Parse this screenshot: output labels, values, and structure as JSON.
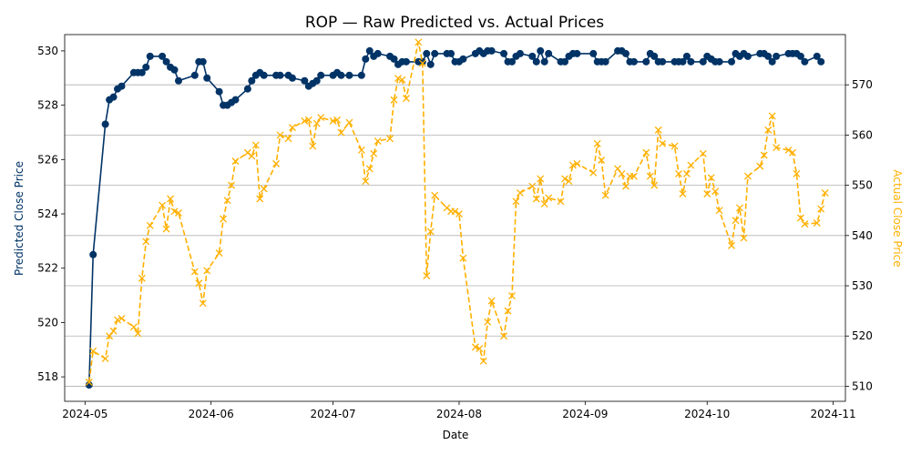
{
  "chart_data": {
    "type": "line",
    "title": "ROP — Raw Predicted vs. Actual Prices",
    "xlabel": "Date",
    "ylabel_left": "Predicted Close Price",
    "ylabel_right": "Actual Close Price",
    "x_range": [
      "2024-04-26",
      "2024-11-04"
    ],
    "ylim_left": [
      517.1,
      530.6
    ],
    "ylim_right": [
      507,
      580
    ],
    "x_ticks": [
      "2024-05",
      "2024-06",
      "2024-07",
      "2024-08",
      "2024-09",
      "2024-10",
      "2024-11"
    ],
    "y_ticks_left": [
      518,
      520,
      522,
      524,
      526,
      528,
      530
    ],
    "y_ticks_right": [
      510,
      520,
      530,
      540,
      550,
      560,
      570
    ],
    "grid": "horizontal lines at right-axis ticks",
    "legend": "none",
    "colors": {
      "predicted": "#003366",
      "actual": "#FFB000"
    },
    "series": [
      {
        "axis": "left",
        "style": "solid line with circle markers",
        "points": [
          [
            "2024-05-02",
            517.7
          ],
          [
            "2024-05-03",
            522.5
          ],
          [
            "2024-05-06",
            527.3
          ],
          [
            "2024-05-07",
            528.2
          ],
          [
            "2024-05-08",
            528.3
          ],
          [
            "2024-05-09",
            528.6
          ],
          [
            "2024-05-10",
            528.7
          ],
          [
            "2024-05-13",
            529.2
          ],
          [
            "2024-05-14",
            529.2
          ],
          [
            "2024-05-15",
            529.2
          ],
          [
            "2024-05-16",
            529.4
          ],
          [
            "2024-05-17",
            529.8
          ],
          [
            "2024-05-20",
            529.8
          ],
          [
            "2024-05-21",
            529.6
          ],
          [
            "2024-05-22",
            529.4
          ],
          [
            "2024-05-23",
            529.3
          ],
          [
            "2024-05-24",
            528.9
          ],
          [
            "2024-05-28",
            529.1
          ],
          [
            "2024-05-29",
            529.6
          ],
          [
            "2024-05-30",
            529.6
          ],
          [
            "2024-05-31",
            529.0
          ],
          [
            "2024-06-03",
            528.5
          ],
          [
            "2024-06-04",
            528.0
          ],
          [
            "2024-06-05",
            528.0
          ],
          [
            "2024-06-06",
            528.1
          ],
          [
            "2024-06-07",
            528.2
          ],
          [
            "2024-06-10",
            528.6
          ],
          [
            "2024-06-11",
            528.9
          ],
          [
            "2024-06-12",
            529.1
          ],
          [
            "2024-06-13",
            529.2
          ],
          [
            "2024-06-14",
            529.1
          ],
          [
            "2024-06-17",
            529.1
          ],
          [
            "2024-06-18",
            529.1
          ],
          [
            "2024-06-20",
            529.1
          ],
          [
            "2024-06-21",
            529.0
          ],
          [
            "2024-06-24",
            528.9
          ],
          [
            "2024-06-25",
            528.7
          ],
          [
            "2024-06-26",
            528.8
          ],
          [
            "2024-06-27",
            528.9
          ],
          [
            "2024-06-28",
            529.1
          ],
          [
            "2024-07-01",
            529.1
          ],
          [
            "2024-07-02",
            529.2
          ],
          [
            "2024-07-03",
            529.1
          ],
          [
            "2024-07-05",
            529.1
          ],
          [
            "2024-07-08",
            529.1
          ],
          [
            "2024-07-09",
            529.7
          ],
          [
            "2024-07-10",
            530.0
          ],
          [
            "2024-07-11",
            529.8
          ],
          [
            "2024-07-12",
            529.9
          ],
          [
            "2024-07-15",
            529.8
          ],
          [
            "2024-07-16",
            529.7
          ],
          [
            "2024-07-17",
            529.5
          ],
          [
            "2024-07-18",
            529.6
          ],
          [
            "2024-07-19",
            529.6
          ],
          [
            "2024-07-22",
            529.6
          ],
          [
            "2024-07-23",
            529.6
          ],
          [
            "2024-07-24",
            529.9
          ],
          [
            "2024-07-25",
            529.5
          ],
          [
            "2024-07-26",
            529.9
          ],
          [
            "2024-07-29",
            529.9
          ],
          [
            "2024-07-30",
            529.9
          ],
          [
            "2024-07-31",
            529.6
          ],
          [
            "2024-08-01",
            529.6
          ],
          [
            "2024-08-02",
            529.7
          ],
          [
            "2024-08-05",
            529.9
          ],
          [
            "2024-08-06",
            530.0
          ],
          [
            "2024-08-07",
            529.9
          ],
          [
            "2024-08-08",
            530.0
          ],
          [
            "2024-08-09",
            530.0
          ],
          [
            "2024-08-12",
            529.9
          ],
          [
            "2024-08-13",
            529.6
          ],
          [
            "2024-08-14",
            529.6
          ],
          [
            "2024-08-15",
            529.8
          ],
          [
            "2024-08-16",
            529.9
          ],
          [
            "2024-08-19",
            529.8
          ],
          [
            "2024-08-20",
            529.6
          ],
          [
            "2024-08-21",
            530.0
          ],
          [
            "2024-08-22",
            529.6
          ],
          [
            "2024-08-23",
            529.9
          ],
          [
            "2024-08-26",
            529.6
          ],
          [
            "2024-08-27",
            529.6
          ],
          [
            "2024-08-28",
            529.8
          ],
          [
            "2024-08-29",
            529.9
          ],
          [
            "2024-08-30",
            529.9
          ],
          [
            "2024-09-03",
            529.9
          ],
          [
            "2024-09-04",
            529.6
          ],
          [
            "2024-09-05",
            529.6
          ],
          [
            "2024-09-06",
            529.6
          ],
          [
            "2024-09-09",
            530.0
          ],
          [
            "2024-09-10",
            530.0
          ],
          [
            "2024-09-11",
            529.9
          ],
          [
            "2024-09-12",
            529.6
          ],
          [
            "2024-09-13",
            529.6
          ],
          [
            "2024-09-16",
            529.6
          ],
          [
            "2024-09-17",
            529.9
          ],
          [
            "2024-09-18",
            529.8
          ],
          [
            "2024-09-19",
            529.6
          ],
          [
            "2024-09-20",
            529.6
          ],
          [
            "2024-09-23",
            529.6
          ],
          [
            "2024-09-24",
            529.6
          ],
          [
            "2024-09-25",
            529.6
          ],
          [
            "2024-09-26",
            529.8
          ],
          [
            "2024-09-27",
            529.6
          ],
          [
            "2024-09-30",
            529.6
          ],
          [
            "2024-10-01",
            529.8
          ],
          [
            "2024-10-02",
            529.7
          ],
          [
            "2024-10-03",
            529.6
          ],
          [
            "2024-10-04",
            529.6
          ],
          [
            "2024-10-07",
            529.6
          ],
          [
            "2024-10-08",
            529.9
          ],
          [
            "2024-10-09",
            529.8
          ],
          [
            "2024-10-10",
            529.9
          ],
          [
            "2024-10-11",
            529.8
          ],
          [
            "2024-10-14",
            529.9
          ],
          [
            "2024-10-15",
            529.9
          ],
          [
            "2024-10-16",
            529.8
          ],
          [
            "2024-10-17",
            529.6
          ],
          [
            "2024-10-18",
            529.8
          ],
          [
            "2024-10-21",
            529.9
          ],
          [
            "2024-10-22",
            529.9
          ],
          [
            "2024-10-23",
            529.9
          ],
          [
            "2024-10-24",
            529.8
          ],
          [
            "2024-10-25",
            529.6
          ],
          [
            "2024-10-28",
            529.8
          ],
          [
            "2024-10-29",
            529.6
          ]
        ]
      },
      {
        "axis": "right",
        "style": "dashed line with x markers",
        "points": [
          [
            "2024-05-02",
            510.8
          ],
          [
            "2024-05-03",
            517.0
          ],
          [
            "2024-05-06",
            515.5
          ],
          [
            "2024-05-07",
            520.0
          ],
          [
            "2024-05-08",
            521.0
          ],
          [
            "2024-05-09",
            523.2
          ],
          [
            "2024-05-10",
            523.5
          ],
          [
            "2024-05-13",
            521.8
          ],
          [
            "2024-05-14",
            520.5
          ],
          [
            "2024-05-15",
            531.5
          ],
          [
            "2024-05-16",
            538.8
          ],
          [
            "2024-05-17",
            542.0
          ],
          [
            "2024-05-20",
            546.0
          ],
          [
            "2024-05-21",
            541.3
          ],
          [
            "2024-05-22",
            547.3
          ],
          [
            "2024-05-23",
            544.8
          ],
          [
            "2024-05-24",
            544.5
          ],
          [
            "2024-05-28",
            532.8
          ],
          [
            "2024-05-29",
            530.5
          ],
          [
            "2024-05-30",
            526.5
          ],
          [
            "2024-05-31",
            533.0
          ],
          [
            "2024-06-03",
            536.5
          ],
          [
            "2024-06-04",
            543.3
          ],
          [
            "2024-06-05",
            547.0
          ],
          [
            "2024-06-06",
            550.0
          ],
          [
            "2024-06-07",
            554.8
          ],
          [
            "2024-06-10",
            556.5
          ],
          [
            "2024-06-11",
            555.8
          ],
          [
            "2024-06-12",
            558.0
          ],
          [
            "2024-06-13",
            547.3
          ],
          [
            "2024-06-14",
            549.3
          ],
          [
            "2024-06-17",
            554.3
          ],
          [
            "2024-06-18",
            560.0
          ],
          [
            "2024-06-20",
            559.3
          ],
          [
            "2024-06-21",
            561.5
          ],
          [
            "2024-06-24",
            562.8
          ],
          [
            "2024-06-25",
            563.0
          ],
          [
            "2024-06-26",
            557.8
          ],
          [
            "2024-06-27",
            562.3
          ],
          [
            "2024-06-28",
            563.5
          ],
          [
            "2024-07-01",
            562.8
          ],
          [
            "2024-07-02",
            563.0
          ],
          [
            "2024-07-03",
            560.5
          ],
          [
            "2024-07-05",
            562.5
          ],
          [
            "2024-07-08",
            557.0
          ],
          [
            "2024-07-09",
            550.8
          ],
          [
            "2024-07-10",
            553.3
          ],
          [
            "2024-07-11",
            556.3
          ],
          [
            "2024-07-12",
            558.8
          ],
          [
            "2024-07-15",
            559.3
          ],
          [
            "2024-07-16",
            567.0
          ],
          [
            "2024-07-17",
            571.3
          ],
          [
            "2024-07-18",
            571.0
          ],
          [
            "2024-07-19",
            567.3
          ],
          [
            "2024-07-22",
            578.5
          ],
          [
            "2024-07-23",
            574.3
          ],
          [
            "2024-07-24",
            532.0
          ],
          [
            "2024-07-25",
            540.8
          ],
          [
            "2024-07-26",
            548.0
          ],
          [
            "2024-07-29",
            545.5
          ],
          [
            "2024-07-30",
            544.8
          ],
          [
            "2024-07-31",
            544.8
          ],
          [
            "2024-08-01",
            544.3
          ],
          [
            "2024-08-02",
            535.5
          ],
          [
            "2024-08-05",
            517.8
          ],
          [
            "2024-08-06",
            517.5
          ],
          [
            "2024-08-07",
            515.0
          ],
          [
            "2024-08-08",
            522.8
          ],
          [
            "2024-08-09",
            527.0
          ],
          [
            "2024-08-12",
            520.0
          ],
          [
            "2024-08-13",
            525.0
          ],
          [
            "2024-08-14",
            528.0
          ],
          [
            "2024-08-15",
            546.8
          ],
          [
            "2024-08-16",
            548.5
          ],
          [
            "2024-08-19",
            549.8
          ],
          [
            "2024-08-20",
            547.3
          ],
          [
            "2024-08-21",
            551.3
          ],
          [
            "2024-08-22",
            546.3
          ],
          [
            "2024-08-23",
            547.5
          ],
          [
            "2024-08-26",
            546.8
          ],
          [
            "2024-08-27",
            551.3
          ],
          [
            "2024-08-28",
            550.8
          ],
          [
            "2024-08-29",
            554.0
          ],
          [
            "2024-08-30",
            554.3
          ],
          [
            "2024-09-03",
            552.5
          ],
          [
            "2024-09-04",
            558.3
          ],
          [
            "2024-09-05",
            555.0
          ],
          [
            "2024-09-06",
            548.0
          ],
          [
            "2024-09-09",
            553.3
          ],
          [
            "2024-09-10",
            552.3
          ],
          [
            "2024-09-11",
            549.8
          ],
          [
            "2024-09-12",
            551.8
          ],
          [
            "2024-09-13",
            551.8
          ],
          [
            "2024-09-16",
            556.5
          ],
          [
            "2024-09-17",
            551.8
          ],
          [
            "2024-09-18",
            550.0
          ],
          [
            "2024-09-19",
            561.0
          ],
          [
            "2024-09-20",
            558.3
          ],
          [
            "2024-09-23",
            557.8
          ],
          [
            "2024-09-24",
            552.3
          ],
          [
            "2024-09-25",
            548.3
          ],
          [
            "2024-09-26",
            552.3
          ],
          [
            "2024-09-27",
            554.0
          ],
          [
            "2024-09-30",
            556.3
          ],
          [
            "2024-10-01",
            548.3
          ],
          [
            "2024-10-02",
            551.5
          ],
          [
            "2024-10-03",
            548.8
          ],
          [
            "2024-10-04",
            545.0
          ],
          [
            "2024-10-07",
            538.0
          ],
          [
            "2024-10-08",
            543.0
          ],
          [
            "2024-10-09",
            545.5
          ],
          [
            "2024-10-10",
            539.5
          ],
          [
            "2024-10-11",
            551.8
          ],
          [
            "2024-10-14",
            553.8
          ],
          [
            "2024-10-15",
            556.0
          ],
          [
            "2024-10-16",
            561.0
          ],
          [
            "2024-10-17",
            563.8
          ],
          [
            "2024-10-18",
            557.5
          ],
          [
            "2024-10-21",
            557.0
          ],
          [
            "2024-10-22",
            556.5
          ],
          [
            "2024-10-23",
            552.3
          ],
          [
            "2024-10-24",
            543.5
          ],
          [
            "2024-10-25",
            542.3
          ],
          [
            "2024-10-28",
            542.5
          ],
          [
            "2024-10-29",
            545.3
          ],
          [
            "2024-10-30",
            548.5
          ]
        ]
      }
    ]
  }
}
